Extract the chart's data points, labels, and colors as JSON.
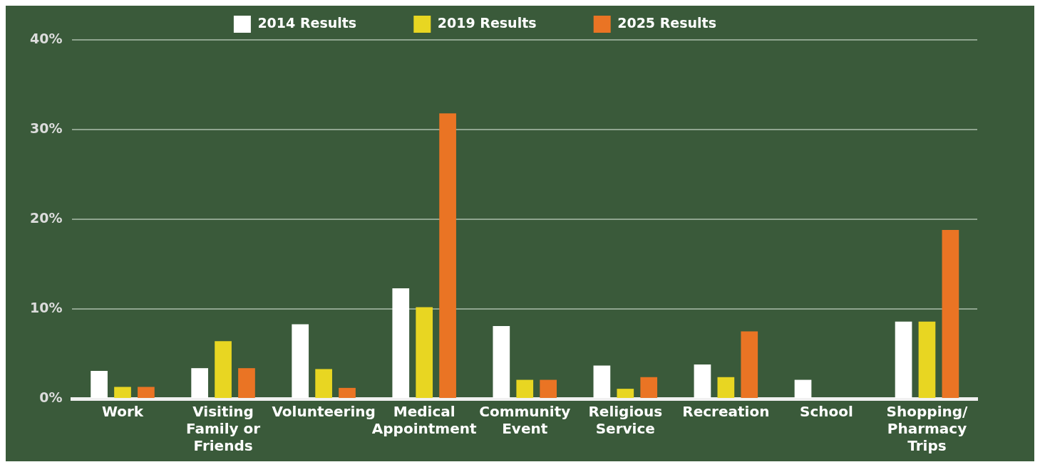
{
  "chart_data": {
    "type": "bar",
    "categories": [
      "Work",
      "Visiting Family or Friends",
      "Volunteering",
      "Medical Appointment",
      "Community Event",
      "Religious Service",
      "Recreation",
      "School",
      "Shopping/ Pharmacy Trips"
    ],
    "series": [
      {
        "name": "2014 Results",
        "color": "#ffffff",
        "values": [
          3.1,
          3.4,
          8.3,
          12.3,
          8.1,
          3.7,
          3.8,
          2.1,
          8.6
        ]
      },
      {
        "name": "2019 Results",
        "color": "#e8d622",
        "values": [
          1.3,
          6.4,
          3.3,
          10.2,
          2.1,
          1.1,
          2.4,
          null,
          8.6
        ]
      },
      {
        "name": "2025 Results",
        "color": "#ea7424",
        "values": [
          1.3,
          3.4,
          1.2,
          31.8,
          2.1,
          2.4,
          7.5,
          null,
          18.8
        ]
      }
    ],
    "ylim": [
      0,
      40
    ],
    "yticks": [
      {
        "value": 0,
        "label": "0%"
      },
      {
        "value": 10,
        "label": "10%"
      },
      {
        "value": 20,
        "label": "20%"
      },
      {
        "value": 30,
        "label": "30%"
      },
      {
        "value": 40,
        "label": "40%"
      }
    ],
    "grid": "y",
    "legend": "top"
  }
}
